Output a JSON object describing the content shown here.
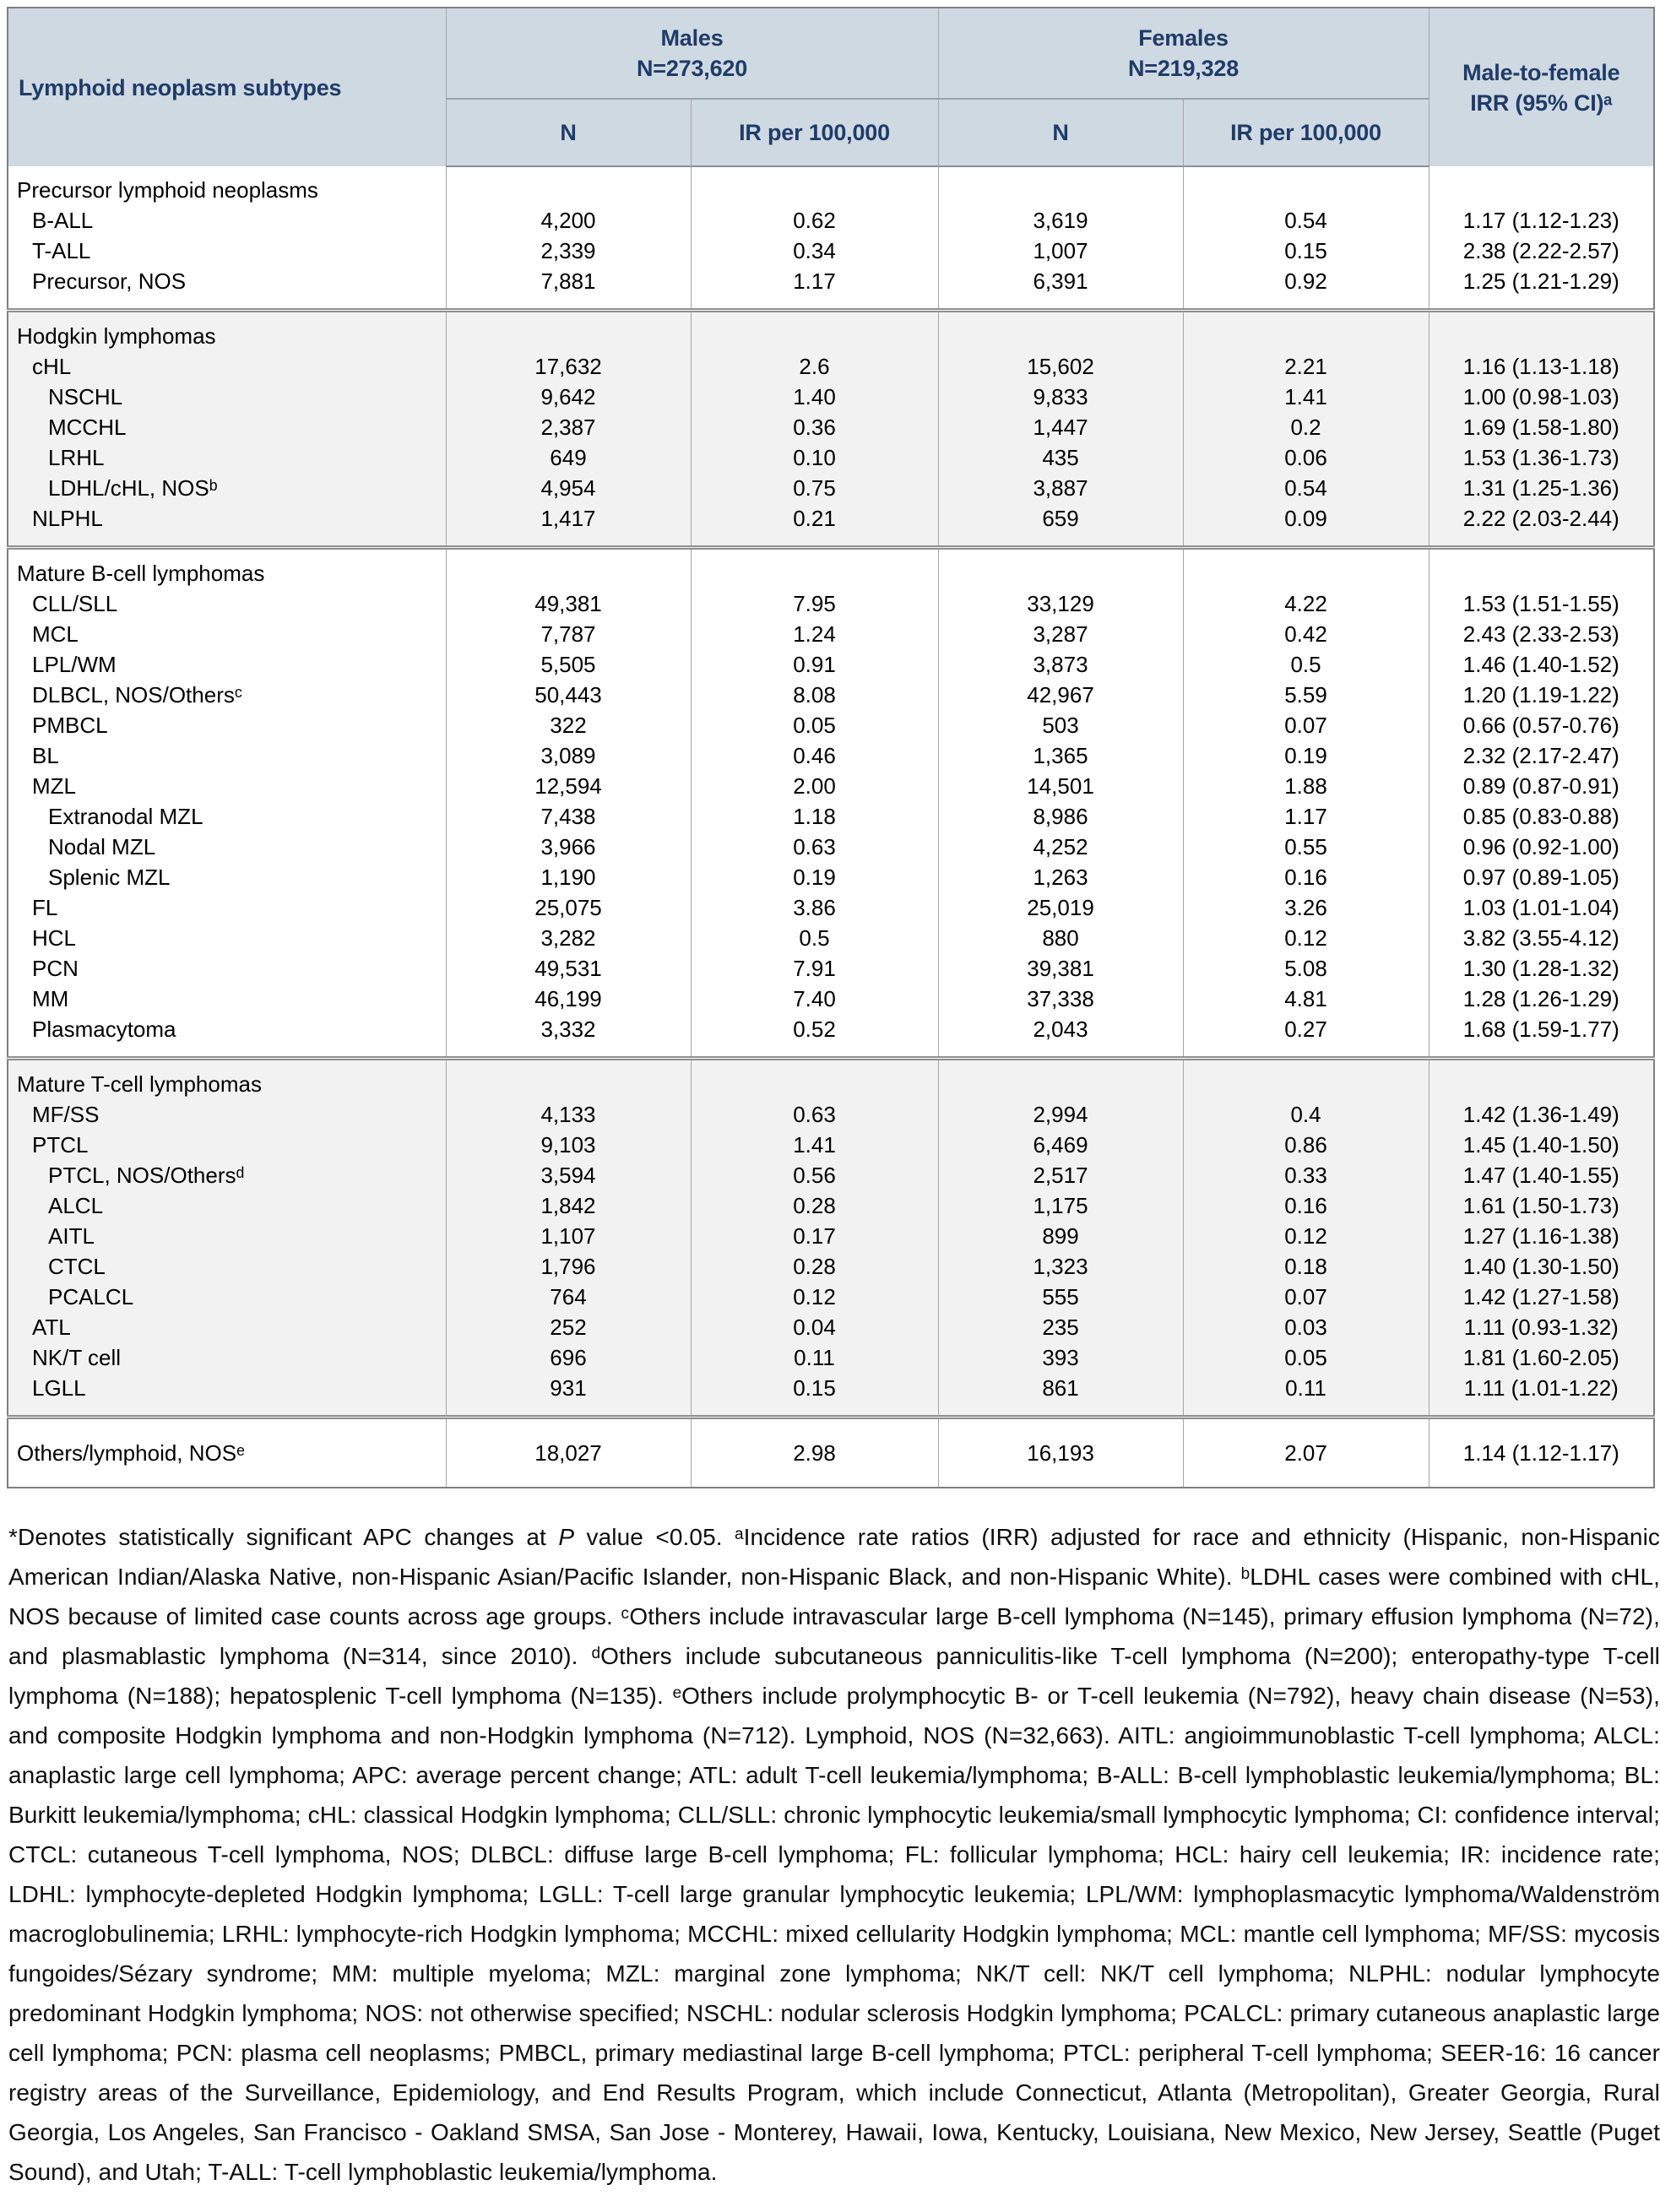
{
  "colors": {
    "header_bg": "#cfd9e2",
    "header_text": "#1f3c68",
    "shaded_bg": "#f2f2f2",
    "border_light": "#a6a6a6",
    "border_mid": "#8f8f8f",
    "border_dark": "#7f7f7f"
  },
  "table": {
    "header": {
      "subtype_col": "Lymphoid neoplasm subtypes",
      "groups": [
        {
          "label": "Males",
          "count": "N=273,620",
          "sub": [
            "N",
            "IR per 100,000"
          ]
        },
        {
          "label": "Females",
          "count": "N=219,328",
          "sub": [
            "N",
            "IR per 100,000"
          ]
        }
      ],
      "irr_line1": "Male-to-female",
      "irr_line2": "IRR (95% CI)ᵃ"
    },
    "sections": [
      {
        "title": "Precursor lymphoid neoplasms",
        "shaded": false,
        "rows": [
          {
            "label": "B-ALL",
            "indent": 1,
            "values": [
              "4,200",
              "0.62",
              "3,619",
              "0.54",
              "1.17 (1.12-1.23)"
            ]
          },
          {
            "label": "T-ALL",
            "indent": 1,
            "values": [
              "2,339",
              "0.34",
              "1,007",
              "0.15",
              "2.38 (2.22-2.57)"
            ]
          },
          {
            "label": "Precursor, NOS",
            "indent": 1,
            "values": [
              "7,881",
              "1.17",
              "6,391",
              "0.92",
              "1.25 (1.21-1.29)"
            ]
          }
        ]
      },
      {
        "title": "Hodgkin lymphomas",
        "shaded": true,
        "rows": [
          {
            "label": "cHL",
            "indent": 1,
            "values": [
              "17,632",
              "2.6",
              "15,602",
              "2.21",
              "1.16 (1.13-1.18)"
            ]
          },
          {
            "label": "NSCHL",
            "indent": 2,
            "values": [
              "9,642",
              "1.40",
              "9,833",
              "1.41",
              "1.00 (0.98-1.03)"
            ]
          },
          {
            "label": "MCCHL",
            "indent": 2,
            "values": [
              "2,387",
              "0.36",
              "1,447",
              "0.2",
              "1.69 (1.58-1.80)"
            ]
          },
          {
            "label": "LRHL",
            "indent": 2,
            "values": [
              "649",
              "0.10",
              "435",
              "0.06",
              "1.53 (1.36-1.73)"
            ]
          },
          {
            "label": "LDHL/cHL, NOSᵇ",
            "indent": 2,
            "values": [
              "4,954",
              "0.75",
              "3,887",
              "0.54",
              "1.31 (1.25-1.36)"
            ]
          },
          {
            "label": "NLPHL",
            "indent": 1,
            "values": [
              "1,417",
              "0.21",
              "659",
              "0.09",
              "2.22 (2.03-2.44)"
            ]
          }
        ]
      },
      {
        "title": "Mature B-cell lymphomas",
        "shaded": false,
        "rows": [
          {
            "label": "CLL/SLL",
            "indent": 1,
            "values": [
              "49,381",
              "7.95",
              "33,129",
              "4.22",
              "1.53 (1.51-1.55)"
            ]
          },
          {
            "label": "MCL",
            "indent": 1,
            "values": [
              "7,787",
              "1.24",
              "3,287",
              "0.42",
              "2.43 (2.33-2.53)"
            ]
          },
          {
            "label": "LPL/WM",
            "indent": 1,
            "values": [
              "5,505",
              "0.91",
              "3,873",
              "0.5",
              "1.46 (1.40-1.52)"
            ]
          },
          {
            "label": "DLBCL, NOS/Othersᶜ",
            "indent": 1,
            "values": [
              "50,443",
              "8.08",
              "42,967",
              "5.59",
              "1.20 (1.19-1.22)"
            ]
          },
          {
            "label": "PMBCL",
            "indent": 1,
            "values": [
              "322",
              "0.05",
              "503",
              "0.07",
              "0.66 (0.57-0.76)"
            ]
          },
          {
            "label": "BL",
            "indent": 1,
            "values": [
              "3,089",
              "0.46",
              "1,365",
              "0.19",
              "2.32 (2.17-2.47)"
            ]
          },
          {
            "label": "MZL",
            "indent": 1,
            "values": [
              "12,594",
              "2.00",
              "14,501",
              "1.88",
              "0.89 (0.87-0.91)"
            ]
          },
          {
            "label": "Extranodal MZL",
            "indent": 2,
            "values": [
              "7,438",
              "1.18",
              "8,986",
              "1.17",
              "0.85 (0.83-0.88)"
            ]
          },
          {
            "label": "Nodal MZL",
            "indent": 2,
            "values": [
              "3,966",
              "0.63",
              "4,252",
              "0.55",
              "0.96 (0.92-1.00)"
            ]
          },
          {
            "label": "Splenic MZL",
            "indent": 2,
            "values": [
              "1,190",
              "0.19",
              "1,263",
              "0.16",
              "0.97 (0.89-1.05)"
            ]
          },
          {
            "label": "FL",
            "indent": 1,
            "values": [
              "25,075",
              "3.86",
              "25,019",
              "3.26",
              "1.03 (1.01-1.04)"
            ]
          },
          {
            "label": "HCL",
            "indent": 1,
            "values": [
              "3,282",
              "0.5",
              "880",
              "0.12",
              "3.82 (3.55-4.12)"
            ]
          },
          {
            "label": "PCN",
            "indent": 1,
            "values": [
              "49,531",
              "7.91",
              "39,381",
              "5.08",
              "1.30 (1.28-1.32)"
            ]
          },
          {
            "label": "MM",
            "indent": 1,
            "values": [
              "46,199",
              "7.40",
              "37,338",
              "4.81",
              "1.28 (1.26-1.29)"
            ]
          },
          {
            "label": "Plasmacytoma",
            "indent": 1,
            "values": [
              "3,332",
              "0.52",
              "2,043",
              "0.27",
              "1.68 (1.59-1.77)"
            ]
          }
        ]
      },
      {
        "title": "Mature T-cell lymphomas",
        "shaded": true,
        "rows": [
          {
            "label": "MF/SS",
            "indent": 1,
            "values": [
              "4,133",
              "0.63",
              "2,994",
              "0.4",
              "1.42 (1.36-1.49)"
            ]
          },
          {
            "label": "PTCL",
            "indent": 1,
            "values": [
              "9,103",
              "1.41",
              "6,469",
              "0.86",
              "1.45 (1.40-1.50)"
            ]
          },
          {
            "label": "PTCL, NOS/Othersᵈ",
            "indent": 2,
            "values": [
              "3,594",
              "0.56",
              "2,517",
              "0.33",
              "1.47 (1.40-1.55)"
            ]
          },
          {
            "label": "ALCL",
            "indent": 2,
            "values": [
              "1,842",
              "0.28",
              "1,175",
              "0.16",
              "1.61 (1.50-1.73)"
            ]
          },
          {
            "label": "AITL",
            "indent": 2,
            "values": [
              "1,107",
              "0.17",
              "899",
              "0.12",
              "1.27 (1.16-1.38)"
            ]
          },
          {
            "label": "CTCL",
            "indent": 2,
            "values": [
              "1,796",
              "0.28",
              "1,323",
              "0.18",
              "1.40 (1.30-1.50)"
            ]
          },
          {
            "label": "PCALCL",
            "indent": 2,
            "values": [
              "764",
              "0.12",
              "555",
              "0.07",
              "1.42 (1.27-1.58)"
            ]
          },
          {
            "label": "ATL",
            "indent": 1,
            "values": [
              "252",
              "0.04",
              "235",
              "0.03",
              "1.11 (0.93-1.32)"
            ]
          },
          {
            "label": "NK/T cell",
            "indent": 1,
            "values": [
              "696",
              "0.11",
              "393",
              "0.05",
              "1.81 (1.60-2.05)"
            ]
          },
          {
            "label": "LGLL",
            "indent": 1,
            "values": [
              "931",
              "0.15",
              "861",
              "0.11",
              "1.11 (1.01-1.22)"
            ]
          }
        ]
      },
      {
        "title": null,
        "shaded": false,
        "single": true,
        "rows": [
          {
            "label": "Others/lymphoid, NOSᵉ",
            "indent": 0,
            "values": [
              "18,027",
              "2.98",
              "16,193",
              "2.07",
              "1.14 (1.12-1.17)"
            ]
          }
        ]
      }
    ]
  },
  "footnote": {
    "segments": [
      {
        "text": "*Denotes statistically significant APC changes at "
      },
      {
        "text": "P",
        "italic": true
      },
      {
        "text": " value <0.05. ᵃIncidence rate ratios (IRR) adjusted for race and ethnicity (Hispanic, non-Hispanic American Indian/Alaska Native, non-Hispanic Asian/Pacific Islander, non-Hispanic Black, and non-Hispanic White). ᵇLDHL cases were combined with cHL, NOS because of limited case counts across age groups. ᶜOthers include intravascular large B-cell lymphoma (N=145), primary effusion lymphoma (N=72), and plasmablastic lymphoma (N=314, since 2010). ᵈOthers include subcutaneous panniculitis-like T-cell lymphoma (N=200); enteropathy-type T-cell lymphoma (N=188); hepatosplenic T-cell lymphoma (N=135). ᵉOthers include prolymphocytic B- or T-cell leukemia (N=792), heavy chain disease (N=53), and composite Hodgkin lymphoma and non-Hodgkin lymphoma (N=712). Lymphoid, NOS (N=32,663). AITL: angioimmunoblastic T-cell lymphoma; ALCL: anaplastic large cell lymphoma; APC: average percent change; ATL: adult T-cell leukemia/lymphoma; B-ALL: B-cell lymphoblastic leukemia/lymphoma; BL: Burkitt leukemia/lymphoma; cHL: classical Hodgkin lymphoma; CLL/SLL: chronic lymphocytic leukemia/small lymphocytic lymphoma; CI: confidence interval; CTCL: cutaneous T-cell lymphoma, NOS; DLBCL: diffuse large B-cell lymphoma; FL: follicular lymphoma; HCL: hairy cell leukemia; IR: incidence rate; LDHL: lymphocyte-depleted Hodgkin lymphoma; LGLL: T-cell large granular lymphocytic leukemia; LPL/WM: lymphoplasmacytic lymphoma/Waldenström macroglobulinemia; LRHL: lymphocyte-rich Hodgkin lymphoma; MCCHL: mixed cellularity Hodgkin lymphoma; MCL: mantle cell lymphoma; MF/SS: mycosis fungoides/Sézary syndrome; MM: multiple myeloma; MZL: marginal zone lymphoma; NK/T cell: NK/T cell lymphoma; NLPHL: nodular lymphocyte predominant Hodgkin lymphoma; NOS: not otherwise specified; NSCHL: nodular sclerosis Hodgkin lymphoma; PCALCL: primary cutaneous anaplastic large cell lymphoma; PCN: plasma cell neoplasms; PMBCL, primary mediastinal large B-cell lymphoma; PTCL: peripheral T-cell lymphoma; SEER-16: 16 cancer registry areas of the Surveillance, Epidemiology, and End Results Program, which include Connecticut, Atlanta (Metropolitan), Greater Georgia, Rural Georgia, Los Angeles, San Francisco - Oakland SMSA, San Jose - Monterey, Hawaii, Iowa, Kentucky, Louisiana, New Mexico, New Jersey, Seattle (Puget Sound), and Utah; T-ALL: T-cell lymphoblastic leukemia/lymphoma."
      }
    ]
  }
}
